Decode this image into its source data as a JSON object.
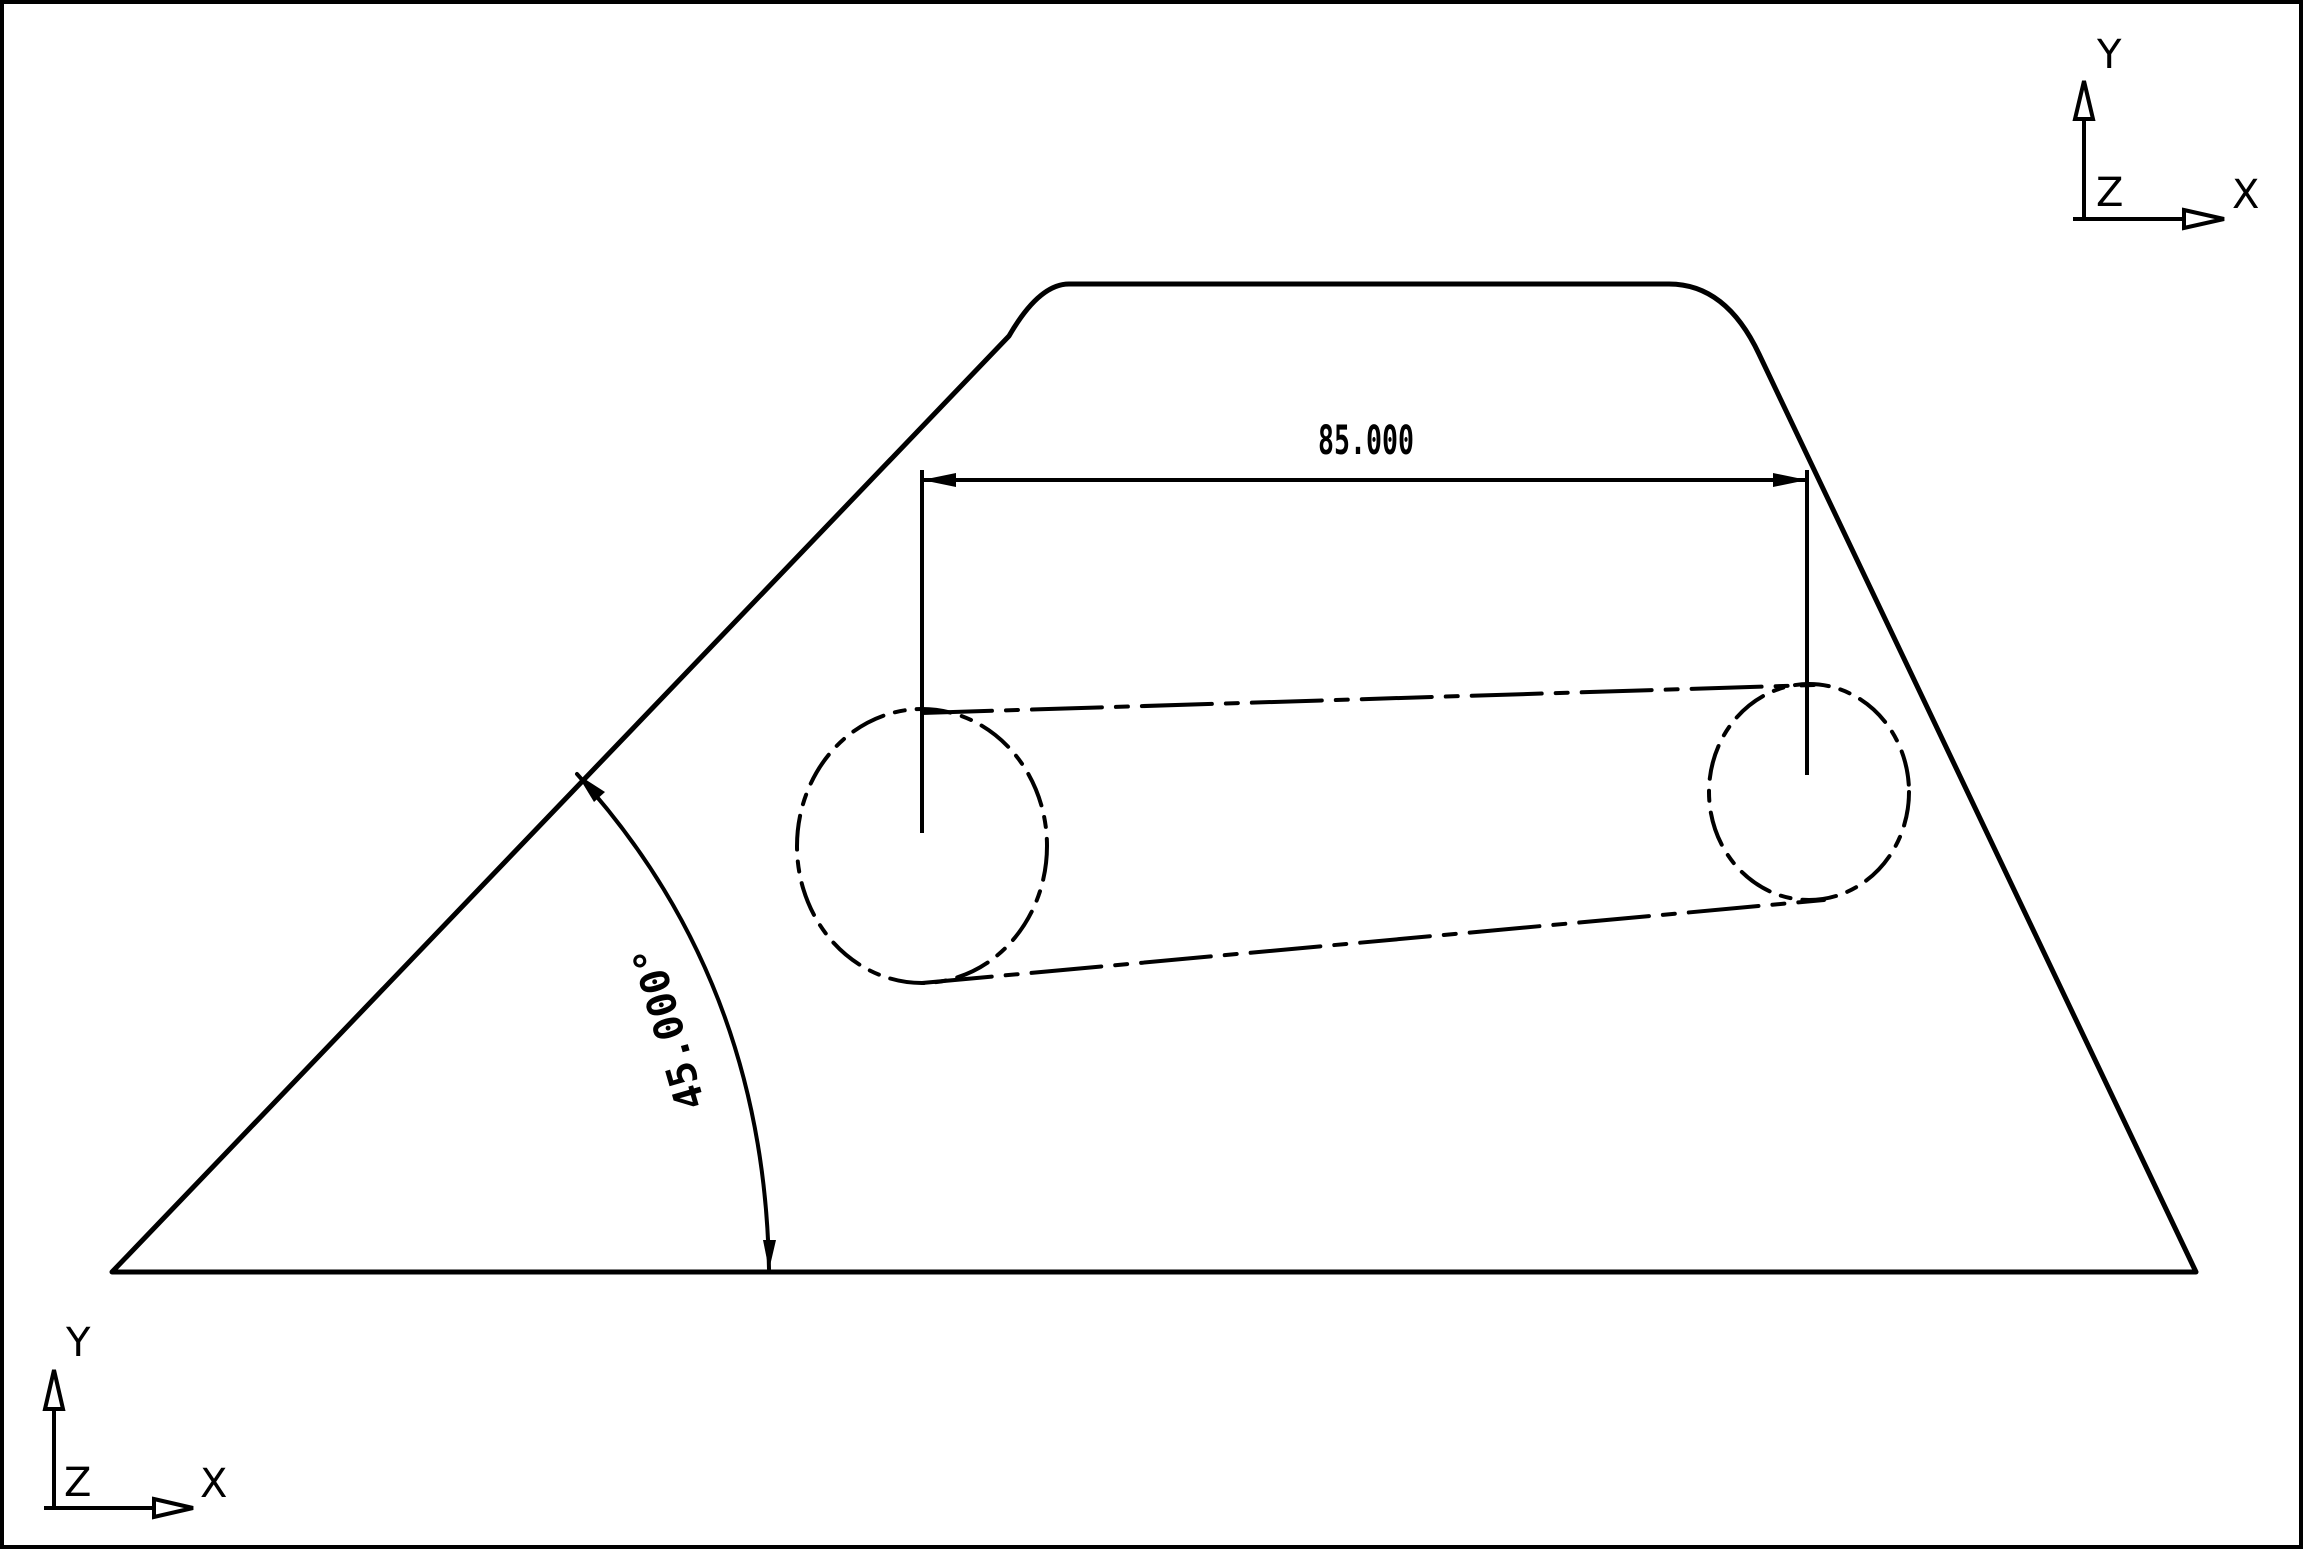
{
  "drawing": {
    "line_color": "#000000",
    "background_color": "#ffffff",
    "dimensions": {
      "linear": "85.000",
      "angular": "45.000°"
    }
  },
  "triads": {
    "top_right": {
      "x_label": "X",
      "y_label": "Y",
      "z_label": "Z"
    },
    "bottom_left": {
      "x_label": "X",
      "y_label": "Y",
      "z_label": "Z"
    }
  }
}
